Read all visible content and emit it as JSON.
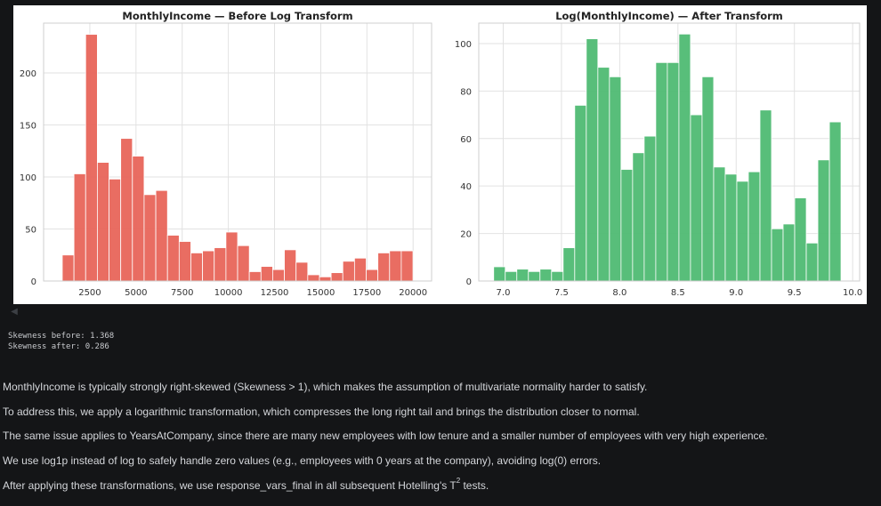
{
  "chart_data": [
    {
      "type": "bar",
      "title": "MonthlyIncome — Before Log Transform",
      "xlabel": "",
      "ylabel": "",
      "color": "#e8655a",
      "xlim": [
        -2,
        21002
      ],
      "ylim": [
        0,
        247.8
      ],
      "xticks": [
        2500,
        5000,
        7500,
        10000,
        12500,
        15000,
        17500,
        20000
      ],
      "xtick_labels": [
        "2500",
        "5000",
        "7500",
        "10000",
        "12500",
        "15000",
        "17500",
        "20000"
      ],
      "yticks": [
        0,
        50,
        100,
        150,
        200
      ],
      "ytick_labels": [
        "0",
        "50",
        "100",
        "150",
        "200"
      ],
      "grid": true,
      "bin_start": 1009,
      "bin_width": 632.8,
      "values": [
        25,
        103,
        237,
        114,
        98,
        137,
        120,
        83,
        87,
        44,
        38,
        27,
        29,
        32,
        47,
        34,
        9,
        14,
        11,
        30,
        18,
        6,
        4,
        8,
        19,
        22,
        11,
        27,
        29,
        29
      ]
    },
    {
      "type": "bar",
      "title": "Log(MonthlyIncome) — After Transform",
      "xlabel": "",
      "ylabel": "",
      "color": "#4fbb73",
      "xlim": [
        6.79,
        10.06
      ],
      "ylim": [
        0,
        108.6
      ],
      "xticks": [
        7.0,
        7.5,
        8.0,
        8.5,
        9.0,
        9.5,
        10.0
      ],
      "xtick_labels": [
        "7.0",
        "7.5",
        "8.0",
        "8.5",
        "9.0",
        "9.5",
        "10.0"
      ],
      "yticks": [
        0,
        20,
        40,
        60,
        80,
        100
      ],
      "ytick_labels": [
        "0",
        "20",
        "40",
        "60",
        "80",
        "100"
      ],
      "grid": true,
      "bin_start": 6.918,
      "bin_width": 0.0994,
      "values": [
        6,
        4,
        5,
        4,
        5,
        4,
        14,
        74,
        102,
        90,
        86,
        47,
        54,
        61,
        92,
        92,
        104,
        70,
        86,
        48,
        45,
        42,
        46,
        72,
        22,
        24,
        35,
        16,
        51,
        67
      ]
    }
  ],
  "output": {
    "skew_before": "Skewness before: 1.368",
    "skew_after": "Skewness after: 0.286"
  },
  "markdown": {
    "p1": "MonthlyIncome is typically strongly right-skewed (Skewness > 1), which makes the assumption of multivariate normality harder to satisfy.",
    "p2": "To address this, we apply a logarithmic transformation, which compresses the long right tail and brings the distribution closer to normal.",
    "p3": "The same issue applies to YearsAtCompany, since there are many new employees with low tenure and a smaller number of employees with very high experience.",
    "p4": "We use log1p instead of log to safely handle zero values (e.g., employees with 0 years at the company), avoiding log(0) errors.",
    "p5_before": "After applying these transformations, we use response_vars_final in all subsequent Hotelling's T",
    "p5_sup": "2",
    "p5_after": " tests."
  },
  "icons": {
    "scroll_left": "triangle-left-icon"
  }
}
